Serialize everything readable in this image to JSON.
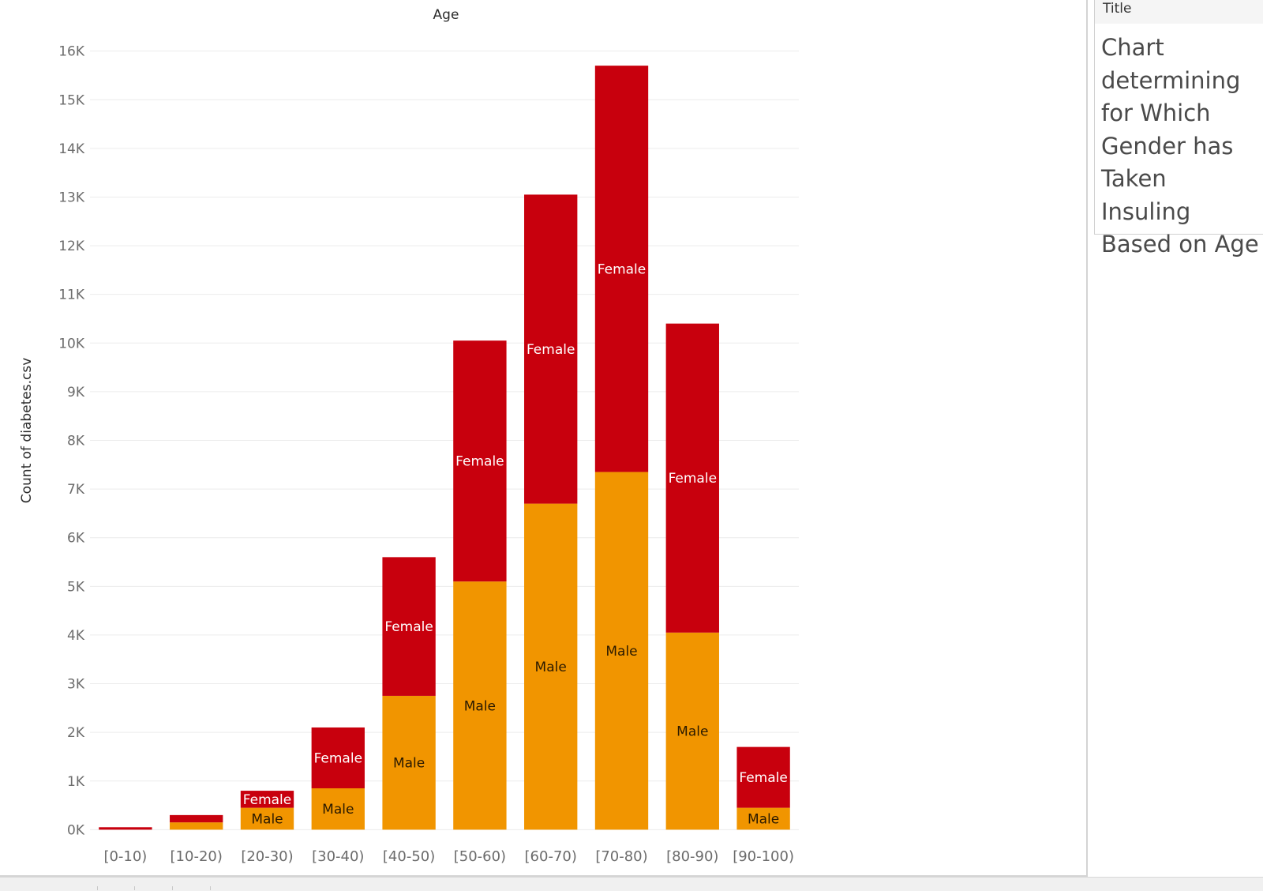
{
  "title_panel": {
    "header": "Title",
    "lines": [
      "Chart",
      "determining",
      "for Which",
      "Gender has",
      "Taken Insuling",
      "Based on Age"
    ]
  },
  "chart_data": {
    "type": "bar",
    "stacked": true,
    "xlabel": "Age",
    "ylabel": "Count of diabetes.csv",
    "categories": [
      "[0-10)",
      "[10-20)",
      "[20-30)",
      "[30-40)",
      "[40-50)",
      "[50-60)",
      "[60-70)",
      "[70-80)",
      "[80-90)",
      "[90-100)"
    ],
    "series": [
      {
        "name": "Male",
        "color": "#f19500",
        "label_color": "#2b1a00",
        "values": [
          0,
          150,
          450,
          850,
          2750,
          5100,
          6700,
          7350,
          4050,
          450
        ],
        "labels": [
          "",
          "",
          "Male",
          "Male",
          "Male",
          "Male",
          "Male",
          "Male",
          "Male",
          "Male"
        ]
      },
      {
        "name": "Female",
        "color": "#c8000d",
        "label_color": "#ffffff",
        "values": [
          50,
          150,
          350,
          1250,
          2850,
          4950,
          6350,
          8350,
          6350,
          1250
        ],
        "labels": [
          "",
          "",
          "Female",
          "Female",
          "Female",
          "Female",
          "Female",
          "Female",
          "Female",
          "Female"
        ]
      }
    ],
    "ylim": [
      -400,
      16400
    ],
    "yticks": [
      0,
      1000,
      2000,
      3000,
      4000,
      5000,
      6000,
      7000,
      8000,
      9000,
      10000,
      11000,
      12000,
      13000,
      14000,
      15000,
      16000
    ],
    "ytick_labels": [
      "0K",
      "1K",
      "2K",
      "3K",
      "4K",
      "5K",
      "6K",
      "7K",
      "8K",
      "9K",
      "10K",
      "11K",
      "12K",
      "13K",
      "14K",
      "15K",
      "16K"
    ],
    "grid": true,
    "legend": "none"
  }
}
